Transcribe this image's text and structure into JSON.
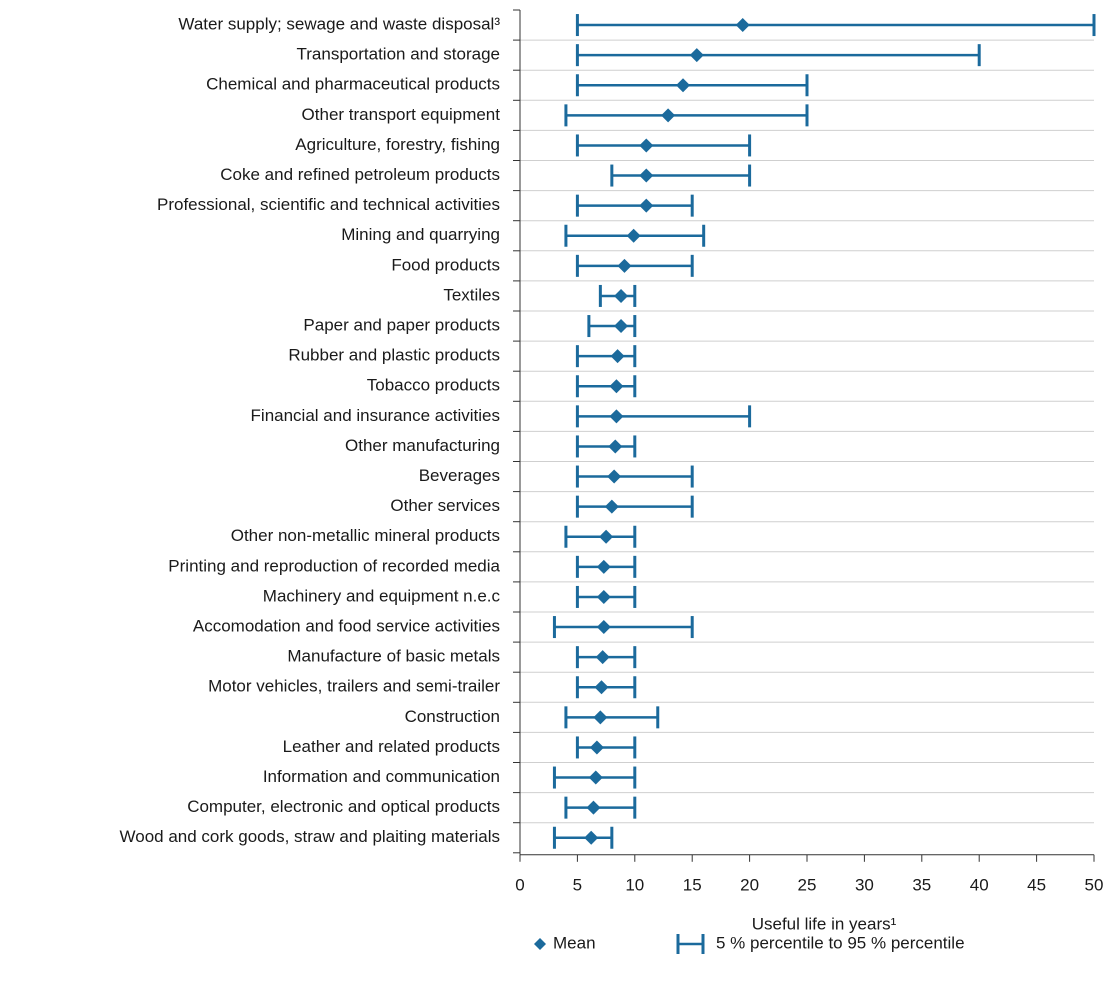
{
  "chart_data": {
    "type": "dot-range",
    "categories": [
      "Water supply; sewage and waste disposal³",
      "Transportation and storage",
      "Chemical and pharmaceutical products",
      "Other transport equipment",
      "Agriculture, forestry, fishing",
      "Coke and refined petroleum products",
      "Professional, scientific and technical activities",
      "Mining and quarrying",
      "Food products",
      "Textiles",
      "Paper and paper products",
      "Rubber and plastic products",
      "Tobacco products",
      "Financial and insurance activities",
      "Other manufacturing",
      "Beverages",
      "Other services",
      "Other non-metallic mineral products",
      "Printing and reproduction of recorded media",
      "Machinery and equipment n.e.c",
      "Accomodation and food service activities",
      "Manufacture of basic metals",
      "Motor vehicles, trailers and semi-trailer",
      "Construction",
      "Leather and related products",
      "Information and communication",
      "Computer, electronic and optical products",
      "Wood and cork goods, straw and plaiting materials"
    ],
    "series": [
      {
        "name": "Mean",
        "color": "#1b6a9c",
        "values": [
          19.4,
          15.4,
          14.2,
          12.9,
          11,
          11,
          11,
          9.9,
          9.1,
          8.8,
          8.8,
          8.5,
          8.4,
          8.4,
          8.3,
          8.2,
          8,
          7.5,
          7.3,
          7.3,
          7.3,
          7.2,
          7.1,
          7,
          6.7,
          6.6,
          6.4,
          6.2
        ]
      }
    ],
    "ranges": {
      "name": "5 % percentile to 95 % percentile",
      "color": "#1b6a9c",
      "low": [
        5,
        5,
        5,
        4,
        5,
        8,
        5,
        4,
        5,
        7,
        6,
        5,
        5,
        5,
        5,
        5,
        5,
        4,
        5,
        5,
        3,
        5,
        5,
        4,
        5,
        3,
        4,
        3
      ],
      "high": [
        50,
        40,
        25,
        25,
        20,
        20,
        15,
        16,
        15,
        10,
        10,
        10,
        10,
        20,
        10,
        15,
        15,
        10,
        10,
        10,
        15,
        10,
        10,
        12,
        10,
        10,
        10,
        8
      ]
    },
    "x_label": "Useful life in years¹",
    "xlim": [
      0,
      50
    ],
    "xticks": [
      0,
      5,
      10,
      15,
      20,
      25,
      30,
      35,
      40,
      45,
      50
    ]
  }
}
